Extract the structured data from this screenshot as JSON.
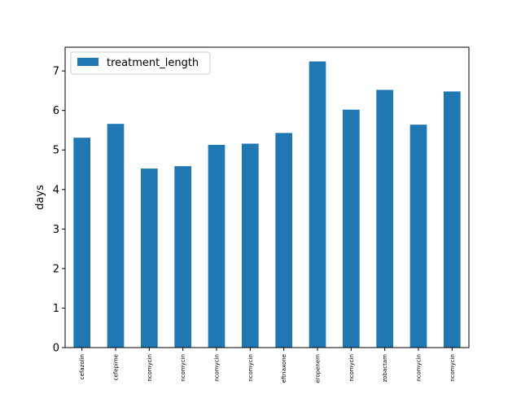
{
  "chart_data": {
    "type": "bar",
    "categories": [
      "cefazolin",
      "cefepime",
      "ncomycin",
      "ncomycin",
      "ncomycin",
      "ncomycin",
      "eftriaxone",
      "eropenem",
      "ncomycin",
      "zobactam",
      "ncomycin",
      "ncomycin"
    ],
    "series": [
      {
        "name": "treatment_length",
        "values": [
          5.31,
          5.66,
          4.53,
          4.59,
          5.13,
          5.16,
          5.43,
          7.24,
          6.02,
          6.52,
          5.64,
          6.48
        ],
        "color": "#1f77b4"
      }
    ],
    "title": "",
    "xlabel": "",
    "ylabel": "days",
    "ylim": [
      0,
      7.6
    ],
    "yticks": [
      "0",
      "1",
      "2",
      "3",
      "4",
      "5",
      "6",
      "7"
    ],
    "grid": false,
    "legend_position": "upper-left"
  }
}
